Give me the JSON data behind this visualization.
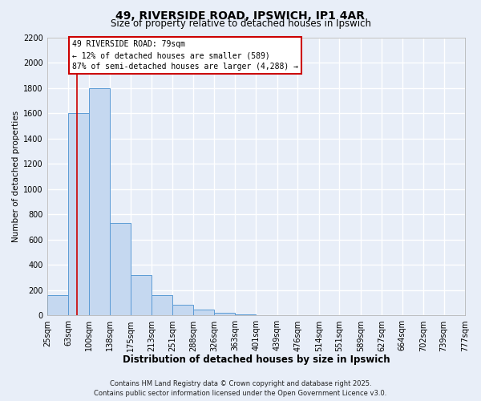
{
  "title": "49, RIVERSIDE ROAD, IPSWICH, IP1 4AR",
  "subtitle": "Size of property relative to detached houses in Ipswich",
  "xlabel": "Distribution of detached houses by size in Ipswich",
  "ylabel": "Number of detached properties",
  "bin_labels": [
    "25sqm",
    "63sqm",
    "100sqm",
    "138sqm",
    "175sqm",
    "213sqm",
    "251sqm",
    "288sqm",
    "326sqm",
    "363sqm",
    "401sqm",
    "439sqm",
    "476sqm",
    "514sqm",
    "551sqm",
    "589sqm",
    "627sqm",
    "664sqm",
    "702sqm",
    "739sqm",
    "777sqm"
  ],
  "bin_edges": [
    25,
    63,
    100,
    138,
    175,
    213,
    251,
    288,
    326,
    363,
    401,
    439,
    476,
    514,
    551,
    589,
    627,
    664,
    702,
    739,
    777
  ],
  "bar_heights": [
    160,
    1600,
    1800,
    730,
    320,
    160,
    85,
    45,
    20,
    10,
    0,
    0,
    0,
    0,
    0,
    0,
    0,
    0,
    0,
    0
  ],
  "bar_color": "#c5d8f0",
  "bar_edge_color": "#5b9bd5",
  "ylim": [
    0,
    2200
  ],
  "yticks": [
    0,
    200,
    400,
    600,
    800,
    1000,
    1200,
    1400,
    1600,
    1800,
    2000,
    2200
  ],
  "property_sqm": 79,
  "vline_color": "#cc0000",
  "annotation_title": "49 RIVERSIDE ROAD: 79sqm",
  "annotation_line1": "← 12% of detached houses are smaller (589)",
  "annotation_line2": "87% of semi-detached houses are larger (4,288) →",
  "annotation_box_color": "#ffffff",
  "annotation_box_edge": "#cc0000",
  "footer_line1": "Contains HM Land Registry data © Crown copyright and database right 2025.",
  "footer_line2": "Contains public sector information licensed under the Open Government Licence v3.0.",
  "background_color": "#e8eef8",
  "plot_bg_color": "#e8eef8",
  "grid_color": "#ffffff",
  "title_fontsize": 10,
  "subtitle_fontsize": 8.5,
  "xlabel_fontsize": 8.5,
  "ylabel_fontsize": 7.5,
  "tick_fontsize": 7,
  "footer_fontsize": 6
}
